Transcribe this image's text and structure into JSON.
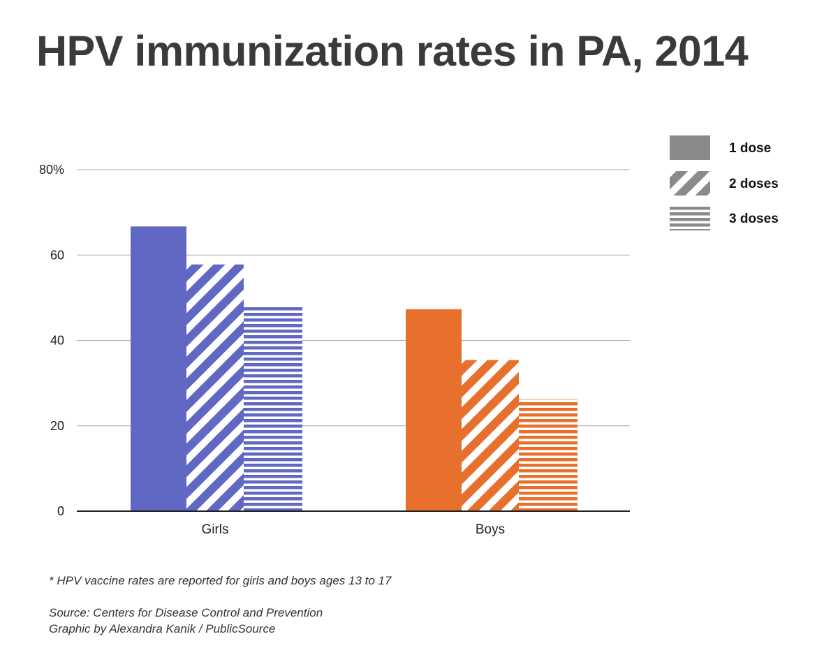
{
  "chart_data": {
    "type": "bar",
    "title": "HPV immunization rates in PA, 2014",
    "categories": [
      "Girls",
      "Boys"
    ],
    "category_colors": [
      "#6068c3",
      "#e6702c"
    ],
    "series": [
      {
        "name": "1 dose",
        "pattern": "solid",
        "values": [
          66.7,
          47.3
        ]
      },
      {
        "name": "2 doses",
        "pattern": "diagonal-stripes",
        "values": [
          57.8,
          35.4
        ]
      },
      {
        "name": "3 doses",
        "pattern": "horizontal-stripes",
        "values": [
          48.2,
          26.2
        ]
      }
    ],
    "ylim": [
      0,
      80
    ],
    "yticks": [
      {
        "value": 0,
        "label": "0"
      },
      {
        "value": 20,
        "label": "20"
      },
      {
        "value": 40,
        "label": "40"
      },
      {
        "value": 60,
        "label": "60"
      },
      {
        "value": 80,
        "label": "80%"
      }
    ],
    "grid": true,
    "legend": {
      "position": "top-right",
      "color": "#8a8a8a"
    },
    "xlabel": "",
    "ylabel": ""
  },
  "footnote": "* HPV vaccine rates are reported for girls and boys ages 13 to 17",
  "source": "Source: Centers for Disease Control and Prevention",
  "credit": "Graphic by Alexandra Kanik / PublicSource"
}
